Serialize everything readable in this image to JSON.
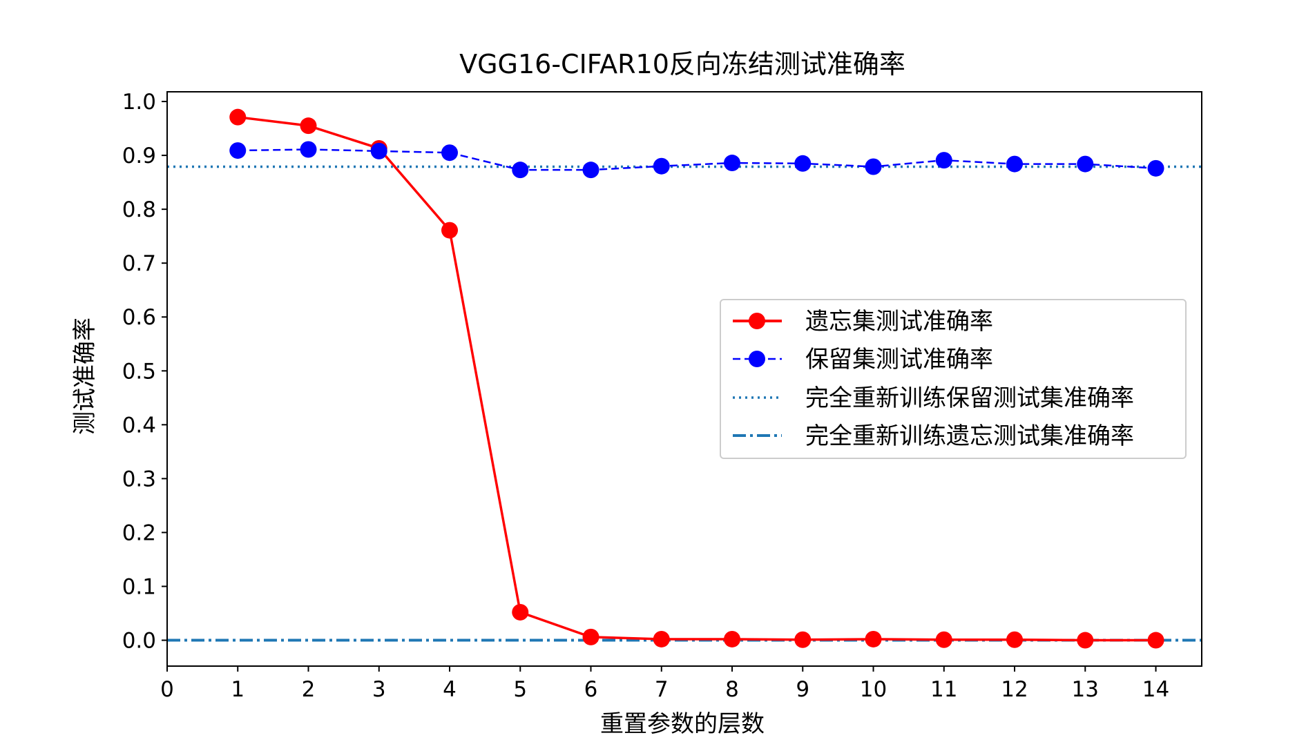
{
  "chart_data": {
    "type": "line",
    "title": "VGG16-CIFAR10反向冻结测试准确率",
    "xlabel": "重置参数的层数",
    "ylabel": "测试准确率",
    "xlim": [
      0,
      14.65
    ],
    "ylim": [
      -0.048,
      1.018
    ],
    "xticks": [
      0,
      1,
      2,
      3,
      4,
      5,
      6,
      7,
      8,
      9,
      10,
      11,
      12,
      13,
      14
    ],
    "yticks": [
      0.0,
      0.1,
      0.2,
      0.3,
      0.4,
      0.5,
      0.6,
      0.7,
      0.8,
      0.9,
      1.0
    ],
    "ytick_labels": [
      "0.0",
      "0.1",
      "0.2",
      "0.3",
      "0.4",
      "0.5",
      "0.6",
      "0.7",
      "0.8",
      "0.9",
      "1.0"
    ],
    "x": [
      1,
      2,
      3,
      4,
      5,
      6,
      7,
      8,
      9,
      10,
      11,
      12,
      13,
      14
    ],
    "series": [
      {
        "name": "遗忘集测试准确率",
        "style": "solid",
        "marker": "circle",
        "color": "#ff0000",
        "values": [
          0.971,
          0.955,
          0.913,
          0.761,
          0.052,
          0.006,
          0.002,
          0.002,
          0.001,
          0.002,
          0.001,
          0.001,
          0.0,
          0.0
        ]
      },
      {
        "name": "保留集测试准确率",
        "style": "dashed",
        "marker": "circle",
        "color": "#0000ff",
        "values": [
          0.909,
          0.911,
          0.908,
          0.905,
          0.873,
          0.873,
          0.88,
          0.886,
          0.885,
          0.879,
          0.891,
          0.884,
          0.884,
          0.876
        ]
      }
    ],
    "reference_lines": [
      {
        "name": "完全重新训练保留测试集准确率",
        "style": "dotted",
        "color": "#1f77b4",
        "y": 0.879
      },
      {
        "name": "完全重新训练遗忘测试集准确率",
        "style": "dashdot",
        "color": "#1f77b4",
        "y": 0.0
      }
    ],
    "legend_position": "center-right",
    "grid": false
  }
}
